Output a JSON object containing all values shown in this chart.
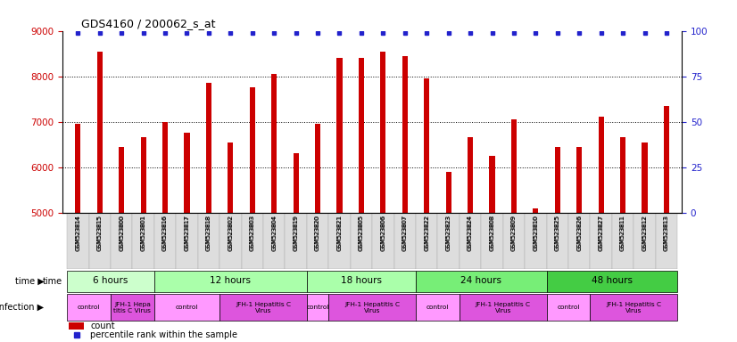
{
  "title": "GDS4160 / 200062_s_at",
  "samples": [
    "GSM523814",
    "GSM523815",
    "GSM523800",
    "GSM523801",
    "GSM523816",
    "GSM523817",
    "GSM523818",
    "GSM523802",
    "GSM523803",
    "GSM523804",
    "GSM523819",
    "GSM523820",
    "GSM523821",
    "GSM523805",
    "GSM523806",
    "GSM523807",
    "GSM523822",
    "GSM523823",
    "GSM523824",
    "GSM523808",
    "GSM523809",
    "GSM523810",
    "GSM523825",
    "GSM523826",
    "GSM523827",
    "GSM523811",
    "GSM523812",
    "GSM523813"
  ],
  "counts": [
    6950,
    8550,
    6450,
    6650,
    7000,
    6750,
    7850,
    6550,
    7750,
    8050,
    6300,
    6950,
    8400,
    8400,
    8550,
    8450,
    7950,
    5900,
    6650,
    6250,
    7050,
    5100,
    6450,
    6450,
    7100,
    6650,
    6550,
    7350
  ],
  "bar_color": "#cc0000",
  "dot_color": "#2222cc",
  "ylim_left": [
    5000,
    9000
  ],
  "ylim_right": [
    0,
    100
  ],
  "yticks_left": [
    5000,
    6000,
    7000,
    8000,
    9000
  ],
  "yticks_right": [
    0,
    25,
    50,
    75,
    100
  ],
  "bar_width": 0.25,
  "time_groups": [
    {
      "label": "6 hours",
      "start": 0,
      "end": 4,
      "color": "#ccffcc"
    },
    {
      "label": "12 hours",
      "start": 4,
      "end": 11,
      "color": "#aaffaa"
    },
    {
      "label": "18 hours",
      "start": 11,
      "end": 16,
      "color": "#aaffaa"
    },
    {
      "label": "24 hours",
      "start": 16,
      "end": 22,
      "color": "#77ee77"
    },
    {
      "label": "48 hours",
      "start": 22,
      "end": 28,
      "color": "#44cc44"
    }
  ],
  "infection_groups": [
    {
      "label": "control",
      "start": 0,
      "end": 2,
      "color": "#ff99ff"
    },
    {
      "label": "JFH-1 Hepa\ntitis C Virus",
      "start": 2,
      "end": 4,
      "color": "#dd55dd"
    },
    {
      "label": "control",
      "start": 4,
      "end": 7,
      "color": "#ff99ff"
    },
    {
      "label": "JFH-1 Hepatitis C\nVirus",
      "start": 7,
      "end": 11,
      "color": "#dd55dd"
    },
    {
      "label": "control",
      "start": 11,
      "end": 12,
      "color": "#ff99ff"
    },
    {
      "label": "JFH-1 Hepatitis C\nVirus",
      "start": 12,
      "end": 16,
      "color": "#dd55dd"
    },
    {
      "label": "control",
      "start": 16,
      "end": 18,
      "color": "#ff99ff"
    },
    {
      "label": "JFH-1 Hepatitis C\nVirus",
      "start": 18,
      "end": 22,
      "color": "#dd55dd"
    },
    {
      "label": "control",
      "start": 22,
      "end": 24,
      "color": "#ff99ff"
    },
    {
      "label": "JFH-1 Hepatitis C\nVirus",
      "start": 24,
      "end": 28,
      "color": "#dd55dd"
    }
  ],
  "legend_count_color": "#cc0000",
  "legend_pct_color": "#2222cc",
  "bg_color": "#ffffff",
  "tick_color_left": "#cc0000",
  "tick_color_right": "#2222cc",
  "xticklabel_bg": "#dddddd"
}
